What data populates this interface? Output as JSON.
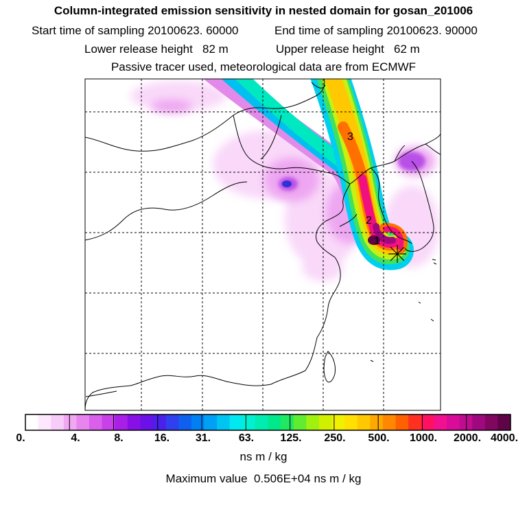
{
  "title": "Column-integrated emission sensitivity in nested domain for gosan_201006",
  "start_label": "Start time of sampling 20100623. 60000",
  "end_label": "End time of sampling 20100623. 90000",
  "lower_label": "Lower release height   82 m",
  "upper_label": "Upper release height   62 m",
  "subtitle": "Passive tracer used, meteorological data are from ECMWF",
  "markers": [
    "1",
    "2",
    "3"
  ],
  "colorbar": {
    "labels": [
      "0.",
      "4.",
      "8.",
      "16.",
      "31.",
      "63.",
      "125.",
      "250.",
      "500.",
      "1000.",
      "2000.",
      "4000."
    ],
    "colors": [
      "#ffffff",
      "#fde8fd",
      "#f8ccf8",
      "#f0a8f2",
      "#e784ee",
      "#d860ea",
      "#c840e8",
      "#a820e8",
      "#8810e6",
      "#6a10e8",
      "#4a20ea",
      "#3040f0",
      "#1060f0",
      "#0080f4",
      "#00a0f4",
      "#00c4f2",
      "#00e8f0",
      "#00f0d0",
      "#00ecb0",
      "#00e88c",
      "#20e860",
      "#60ec30",
      "#a0f010",
      "#d0f000",
      "#f0f000",
      "#ffe000",
      "#ffc800",
      "#ffa800",
      "#ff8800",
      "#ff6000",
      "#ff3020",
      "#ff1060",
      "#f01090",
      "#d80c98",
      "#c00c90",
      "#a00880",
      "#800660",
      "#600448"
    ],
    "unit": "ns m / kg"
  },
  "max_value_label": "Maximum value  0.506E+04 ns m / kg"
}
